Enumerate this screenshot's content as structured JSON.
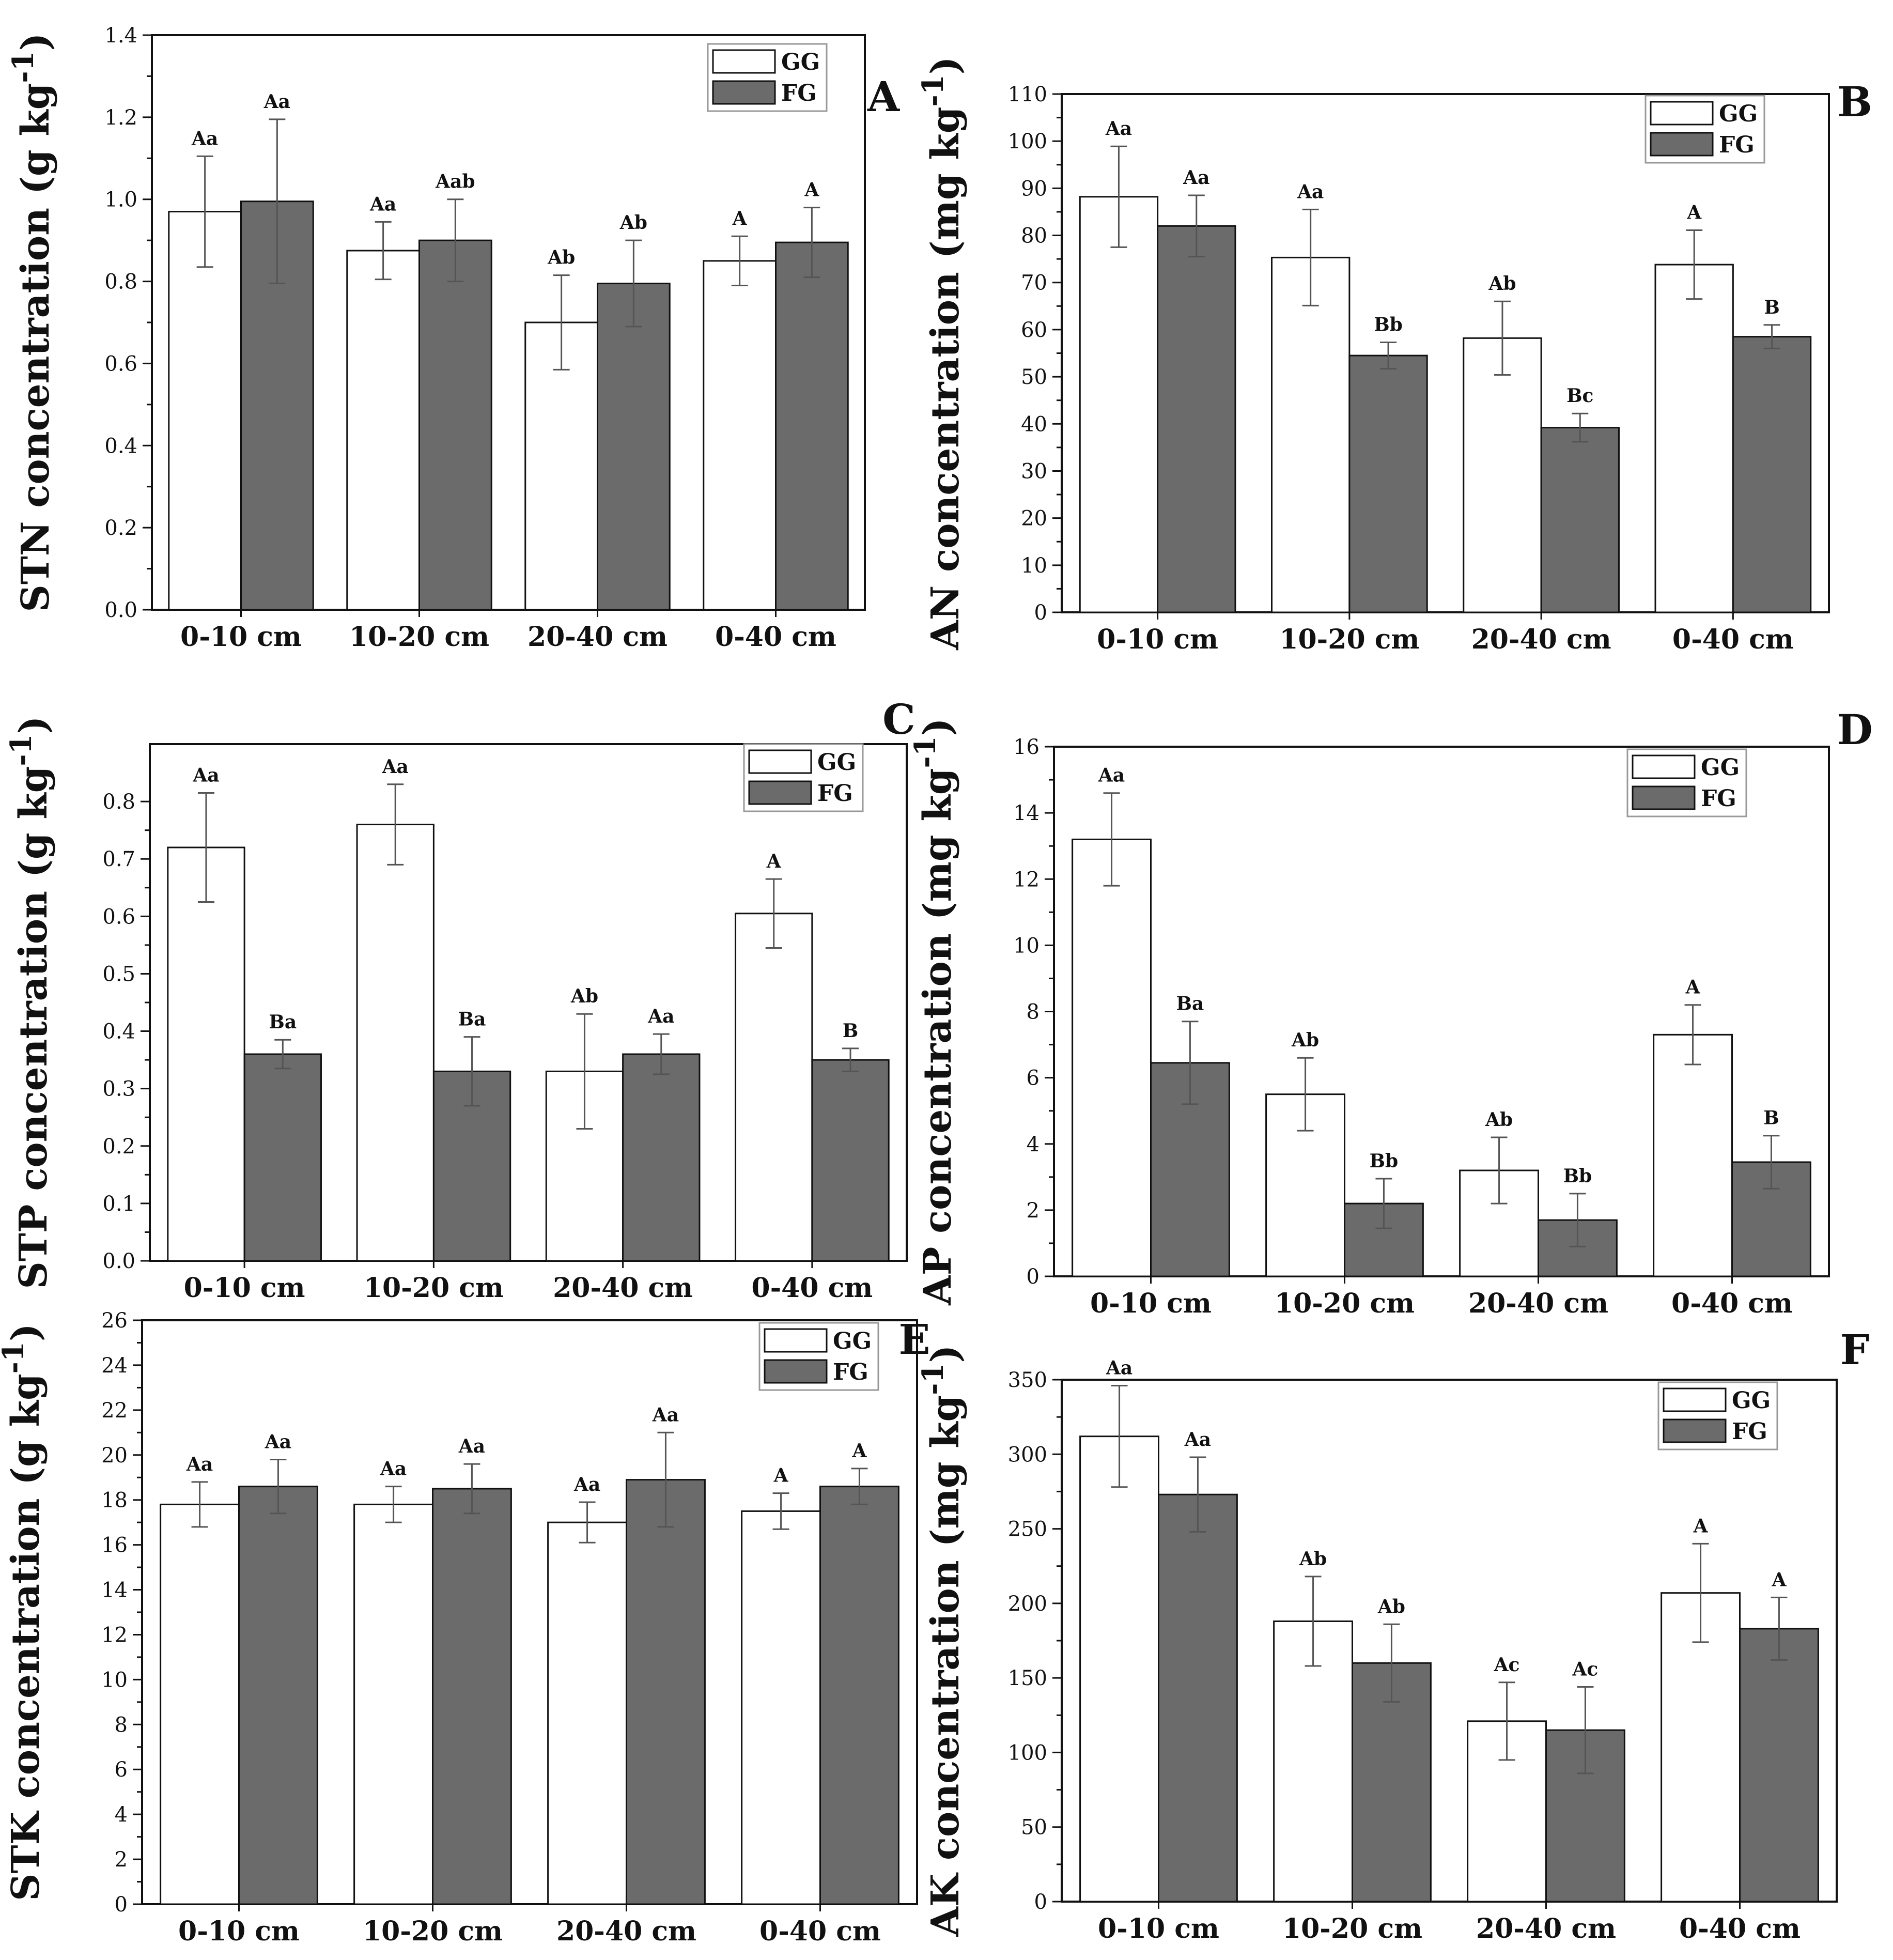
{
  "figure": {
    "legend_labels": [
      "GG",
      "FG"
    ],
    "colors": {
      "GG": "#ffffff",
      "FG": "#6b6b6b",
      "axis": "#111111",
      "error": "#555555"
    }
  },
  "chart_data": [
    {
      "panel": "A",
      "type": "bar",
      "title": "",
      "xlabel": "",
      "ylabel": "STN concentration (g kg-1)",
      "ylabel_main": "STN concentration (g kg",
      "ylabel_sup": "-1",
      "ylabel_close": ")",
      "categories": [
        "0-10 cm",
        "10-20 cm",
        "20-40 cm",
        "0-40 cm"
      ],
      "ylim": [
        0,
        1.4
      ],
      "yticks": [
        0,
        0.2,
        0.4,
        0.6,
        0.8,
        1.0,
        1.2,
        1.4
      ],
      "ytick_labels": [
        "0.0",
        "0.2",
        "0.4",
        "0.6",
        "0.8",
        "1.0",
        "1.2",
        "1.4"
      ],
      "series": [
        {
          "name": "GG",
          "values": [
            0.97,
            0.875,
            0.7,
            0.85
          ],
          "errors": [
            0.135,
            0.07,
            0.115,
            0.06
          ],
          "labels": [
            "Aa",
            "Aa",
            "Ab",
            "A"
          ]
        },
        {
          "name": "FG",
          "values": [
            0.995,
            0.9,
            0.795,
            0.895
          ],
          "errors": [
            0.2,
            0.1,
            0.105,
            0.085
          ],
          "labels": [
            "Aa",
            "Aab",
            "Ab",
            "A"
          ]
        }
      ],
      "legend": "top-right"
    },
    {
      "panel": "B",
      "type": "bar",
      "title": "",
      "xlabel": "",
      "ylabel": "AN concentration (mg kg-1)",
      "ylabel_main": "AN concentration (mg kg",
      "ylabel_sup": "-1",
      "ylabel_close": ")",
      "categories": [
        "0-10 cm",
        "10-20 cm",
        "20-40 cm",
        "0-40 cm"
      ],
      "ylim": [
        0,
        110
      ],
      "yticks": [
        0,
        10,
        20,
        30,
        40,
        50,
        60,
        70,
        80,
        90,
        100,
        110
      ],
      "ytick_labels": [
        "0",
        "10",
        "20",
        "30",
        "40",
        "50",
        "60",
        "70",
        "80",
        "90",
        "100",
        "110"
      ],
      "series": [
        {
          "name": "GG",
          "values": [
            88.2,
            75.3,
            58.2,
            73.8
          ],
          "errors": [
            10.7,
            10.2,
            7.8,
            7.3
          ],
          "labels": [
            "Aa",
            "Aa",
            "Ab",
            "A"
          ]
        },
        {
          "name": "FG",
          "values": [
            82.0,
            54.5,
            39.2,
            58.5
          ],
          "errors": [
            6.5,
            2.8,
            3.0,
            2.5
          ],
          "labels": [
            "Aa",
            "Bb",
            "Bc",
            "B"
          ]
        }
      ],
      "legend": "top-right"
    },
    {
      "panel": "C",
      "type": "bar",
      "title": "",
      "xlabel": "",
      "ylabel": "STP concentration (g kg-1)",
      "ylabel_main": "STP concentration (g kg",
      "ylabel_sup": "-1",
      "ylabel_close": ")",
      "categories": [
        "0-10 cm",
        "10-20 cm",
        "20-40 cm",
        "0-40 cm"
      ],
      "ylim": [
        0,
        0.9
      ],
      "yticks": [
        0,
        0.1,
        0.2,
        0.3,
        0.4,
        0.5,
        0.6,
        0.7,
        0.8
      ],
      "ytick_labels": [
        "0.0",
        "0.1",
        "0.2",
        "0.3",
        "0.4",
        "0.5",
        "0.6",
        "0.7",
        "0.8"
      ],
      "series": [
        {
          "name": "GG",
          "values": [
            0.72,
            0.76,
            0.33,
            0.605
          ],
          "errors": [
            0.095,
            0.07,
            0.1,
            0.06
          ],
          "labels": [
            "Aa",
            "Aa",
            "Ab",
            "A"
          ]
        },
        {
          "name": "FG",
          "values": [
            0.36,
            0.33,
            0.36,
            0.35
          ],
          "errors": [
            0.025,
            0.06,
            0.035,
            0.02
          ],
          "labels": [
            "Ba",
            "Ba",
            "Aa",
            "B"
          ]
        }
      ],
      "legend": "top-right"
    },
    {
      "panel": "D",
      "type": "bar",
      "title": "",
      "xlabel": "",
      "ylabel": "AP concentration (mg kg-1)",
      "ylabel_main": "AP concentration (mg kg",
      "ylabel_sup": "-1",
      "ylabel_close": ")",
      "categories": [
        "0-10 cm",
        "10-20 cm",
        "20-40 cm",
        "0-40 cm"
      ],
      "ylim": [
        0,
        16
      ],
      "yticks": [
        0,
        2,
        4,
        6,
        8,
        10,
        12,
        14,
        16
      ],
      "ytick_labels": [
        "0",
        "2",
        "4",
        "6",
        "8",
        "10",
        "12",
        "14",
        "16"
      ],
      "series": [
        {
          "name": "GG",
          "values": [
            13.2,
            5.5,
            3.2,
            7.3
          ],
          "errors": [
            1.4,
            1.1,
            1.0,
            0.9
          ],
          "labels": [
            "Aa",
            "Ab",
            "Ab",
            "A"
          ]
        },
        {
          "name": "FG",
          "values": [
            6.45,
            2.2,
            1.7,
            3.45
          ],
          "errors": [
            1.25,
            0.75,
            0.8,
            0.8
          ],
          "labels": [
            "Ba",
            "Bb",
            "Bb",
            "B"
          ]
        }
      ],
      "legend": "top-right"
    },
    {
      "panel": "E",
      "type": "bar",
      "title": "",
      "xlabel": "",
      "ylabel": "STK concentration (g kg-1)",
      "ylabel_main": "STK concentration (g kg",
      "ylabel_sup": "-1",
      "ylabel_close": ")",
      "categories": [
        "0-10 cm",
        "10-20 cm",
        "20-40 cm",
        "0-40 cm"
      ],
      "ylim": [
        0,
        26
      ],
      "yticks": [
        0,
        2,
        4,
        6,
        8,
        10,
        12,
        14,
        16,
        18,
        20,
        22,
        24,
        26
      ],
      "ytick_labels": [
        "0",
        "2",
        "4",
        "6",
        "8",
        "10",
        "12",
        "14",
        "16",
        "18",
        "20",
        "22",
        "24",
        "26"
      ],
      "series": [
        {
          "name": "GG",
          "values": [
            17.8,
            17.8,
            17.0,
            17.5
          ],
          "errors": [
            1.0,
            0.8,
            0.9,
            0.8
          ],
          "labels": [
            "Aa",
            "Aa",
            "Aa",
            "A"
          ]
        },
        {
          "name": "FG",
          "values": [
            18.6,
            18.5,
            18.9,
            18.6
          ],
          "errors": [
            1.2,
            1.1,
            2.1,
            0.8
          ],
          "labels": [
            "Aa",
            "Aa",
            "Aa",
            "A"
          ]
        }
      ],
      "legend": "top-right"
    },
    {
      "panel": "F",
      "type": "bar",
      "title": "",
      "xlabel": "",
      "ylabel": "AK concentration (mg kg-1)",
      "ylabel_main": "AK concentration (mg kg",
      "ylabel_sup": "-1",
      "ylabel_close": ")",
      "categories": [
        "0-10 cm",
        "10-20 cm",
        "20-40 cm",
        "0-40 cm"
      ],
      "ylim": [
        0,
        350
      ],
      "yticks": [
        0,
        50,
        100,
        150,
        200,
        250,
        300,
        350
      ],
      "ytick_labels": [
        "0",
        "50",
        "100",
        "150",
        "200",
        "250",
        "300",
        "350"
      ],
      "series": [
        {
          "name": "GG",
          "values": [
            312,
            188,
            121,
            207
          ],
          "errors": [
            34,
            30,
            26,
            33
          ],
          "labels": [
            "Aa",
            "Ab",
            "Ac",
            "A"
          ]
        },
        {
          "name": "FG",
          "values": [
            273,
            160,
            115,
            183
          ],
          "errors": [
            25,
            26,
            29,
            21
          ],
          "labels": [
            "Aa",
            "Ab",
            "Ac",
            "A"
          ]
        }
      ],
      "legend": "top-right"
    }
  ]
}
